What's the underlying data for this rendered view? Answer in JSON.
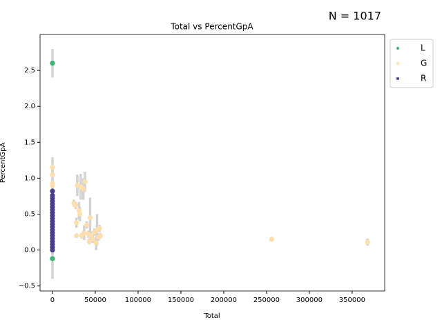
{
  "chart_data": {
    "type": "scatter",
    "title": "Total vs PercentGpA",
    "annotation": "N = 1017",
    "x_label": "Total",
    "y_label": "PercentGpA",
    "xlim": [
      -14500,
      388000
    ],
    "ylim": [
      -0.57,
      3.0
    ],
    "xticks": [
      0,
      50000,
      100000,
      150000,
      200000,
      250000,
      300000,
      350000
    ],
    "yticks": [
      {
        "value": -0.5,
        "label": "−0.5"
      },
      {
        "value": 0,
        "label": "0.0"
      },
      {
        "value": 0.5,
        "label": "0.5"
      },
      {
        "value": 1,
        "label": "1.0"
      },
      {
        "value": 1.5,
        "label": "1.5"
      },
      {
        "value": 2,
        "label": "2.0"
      },
      {
        "value": 2.5,
        "label": "2.5"
      }
    ],
    "legend": "upper right",
    "error_color": "#d3d3d3",
    "series": [
      {
        "name": "L",
        "color": "#3cb371",
        "x": [
          0,
          0
        ],
        "values": [
          2.6,
          -0.12
        ],
        "errors": [
          0.2,
          0.28
        ]
      },
      {
        "name": "G",
        "color": "#ffdead",
        "x": [
          0,
          0,
          0,
          0,
          25000,
          27000,
          28000,
          28000,
          29000,
          31000,
          32000,
          33000,
          34000,
          36000,
          37000,
          38000,
          40000,
          42000,
          43000,
          44000,
          45000,
          47000,
          49000,
          51000,
          52000,
          54000,
          55000,
          56000,
          256000,
          368000
        ],
        "values": [
          1.15,
          1.05,
          0.93,
          0.9,
          0.65,
          0.62,
          0.2,
          0.38,
          0.9,
          0.55,
          0.5,
          0.88,
          0.2,
          0.85,
          0.24,
          0.95,
          0.35,
          0.22,
          0.12,
          0.45,
          0.2,
          0.15,
          0.25,
          0.1,
          0.28,
          0.18,
          0.3,
          0.2,
          0.15,
          0.11
        ],
        "errors": [
          0.14,
          0.1,
          0.08,
          0.06,
          0.05,
          0.05,
          0.03,
          0.07,
          0.15,
          0.12,
          0.1,
          0.18,
          0.04,
          0.15,
          0.1,
          0.14,
          0.05,
          0.05,
          0.04,
          0.28,
          0.06,
          0.05,
          0.05,
          0.1,
          0.22,
          0.05,
          0.05,
          0.04,
          0.03,
          0.05
        ]
      },
      {
        "name": "R",
        "color": "#483d8b",
        "x": [
          0,
          0,
          0,
          0,
          0,
          0,
          0,
          0,
          0,
          0,
          0,
          0,
          0,
          0,
          0,
          0,
          0,
          0,
          0,
          0,
          0
        ],
        "values": [
          0.0,
          0.04,
          0.08,
          0.12,
          0.16,
          0.2,
          0.24,
          0.28,
          0.32,
          0.36,
          0.4,
          0.44,
          0.48,
          0.52,
          0.56,
          0.6,
          0.64,
          0.68,
          0.72,
          0.76,
          0.82
        ],
        "errors": [
          0.05,
          0.05,
          0.05,
          0.05,
          0.05,
          0.05,
          0.05,
          0.05,
          0.05,
          0.05,
          0.05,
          0.05,
          0.05,
          0.05,
          0.05,
          0.05,
          0.05,
          0.05,
          0.05,
          0.05,
          0.05
        ]
      }
    ]
  }
}
